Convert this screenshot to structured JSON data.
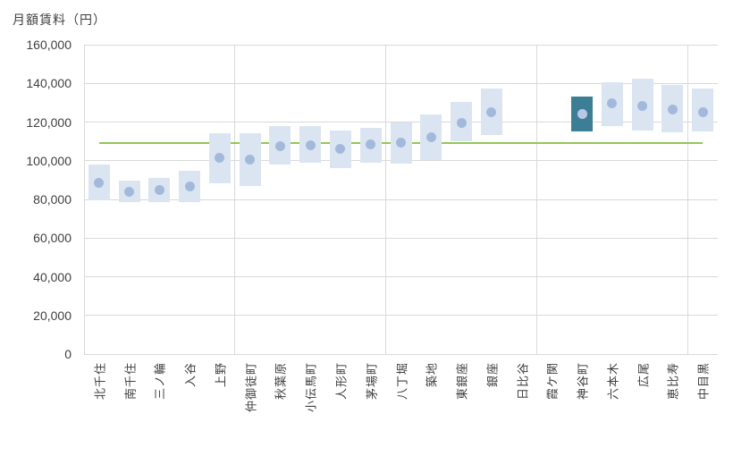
{
  "chart_data": {
    "type": "bar",
    "subtype": "floating-range-bars-with-median-dots",
    "title": "月額賃料（円）",
    "categories": [
      "北千住",
      "南千住",
      "三ノ輪",
      "入谷",
      "上野",
      "仲御徒町",
      "秋葉原",
      "小伝馬町",
      "人形町",
      "茅場町",
      "八丁堀",
      "築地",
      "東銀座",
      "銀座",
      "日比谷",
      "霞ケ関",
      "神谷町",
      "六本木",
      "広尾",
      "恵比寿",
      "中目黒"
    ],
    "series": [
      {
        "name": "range_low",
        "values": [
          79500,
          78500,
          78500,
          78500,
          88500,
          87000,
          98000,
          99000,
          96000,
          99000,
          98500,
          100500,
          110000,
          113500,
          null,
          null,
          115000,
          118000,
          115500,
          114500,
          115000
        ]
      },
      {
        "name": "range_high",
        "values": [
          98000,
          89500,
          91000,
          95000,
          114000,
          114000,
          118000,
          118000,
          115500,
          117000,
          120000,
          124000,
          130500,
          137500,
          null,
          null,
          133000,
          140500,
          142500,
          139000,
          137500
        ]
      },
      {
        "name": "median",
        "values": [
          88500,
          84000,
          85000,
          86500,
          101500,
          100500,
          107500,
          108000,
          106000,
          108500,
          109500,
          112000,
          119500,
          125000,
          null,
          null,
          124000,
          129500,
          128500,
          126500,
          125000
        ]
      }
    ],
    "reference_line": {
      "value": 109000
    },
    "highlight_index": 16,
    "highlight_category": "神谷町",
    "ylim": [
      0,
      160000
    ],
    "ytick_interval": 20000,
    "ytick_labels": [
      "0",
      "20,000",
      "40,000",
      "60,000",
      "80,000",
      "100,000",
      "120,000",
      "140,000",
      "160,000"
    ],
    "x_gridline_every": 5,
    "grid": true,
    "legend": null
  },
  "colors": {
    "bar_fill": "#dbe5f2",
    "bar_highlight_fill": "#3d7e97",
    "dot_fill": "#a3b9dc",
    "dot_highlight_fill": "#b9c8e6",
    "reference_line": "#93c853",
    "gridline": "#d9d9d9",
    "text": "#404040"
  },
  "layout_hints": {
    "x_labels_rotated": "-90deg, reading bottom to top",
    "legend_position": "none"
  }
}
